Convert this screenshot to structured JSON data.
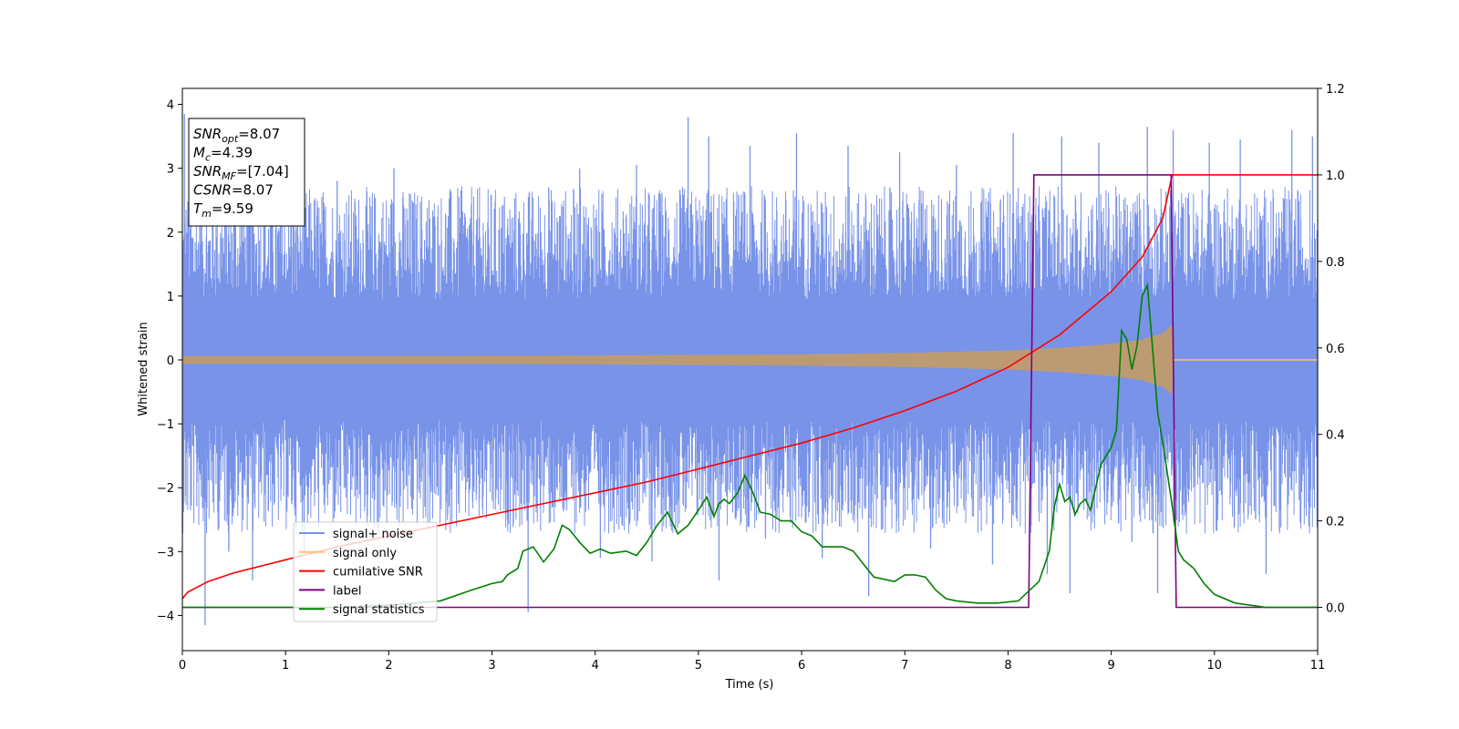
{
  "chart_data": {
    "type": "line",
    "xlabel": "Time (s)",
    "ylabel": "Whitened strain",
    "xlim": [
      0,
      11
    ],
    "ylim_left": [
      -4.55,
      4.25
    ],
    "ylim_right": [
      -0.1,
      1.2
    ],
    "x_ticks": [
      "0",
      "1",
      "2",
      "3",
      "4",
      "5",
      "6",
      "7",
      "8",
      "9",
      "10",
      "11"
    ],
    "y_ticks_left": [
      "−4",
      "−3",
      "−2",
      "−1",
      "0",
      "1",
      "2",
      "3",
      "4"
    ],
    "y_ticks_right": [
      "0.0",
      "0.2",
      "0.4",
      "0.6",
      "0.8",
      "1.0",
      "1.2"
    ],
    "grid": false,
    "legend_position": "lower-left",
    "annotation": {
      "lines": [
        {
          "base": "SNR",
          "sub": "opt",
          "text": "=8.07"
        },
        {
          "base": "M",
          "sub": "c",
          "text": "=4.39"
        },
        {
          "base": "SNR",
          "sub": "MF",
          "text": "=[7.04]"
        },
        {
          "base": "CSNR",
          "sub": "",
          "text": "=8.07"
        },
        {
          "base": "T",
          "sub": "m",
          "text": "=9.59"
        }
      ]
    },
    "series": [
      {
        "name": "signal+ noise",
        "axis": "left",
        "color": "#7893e8",
        "band": {
          "typical_low": -1.7,
          "typical_high": 1.7
        },
        "peaks": [
          [
            0.02,
            3.85
          ],
          [
            0.22,
            -4.15
          ],
          [
            0.45,
            -3.0
          ],
          [
            0.68,
            -3.45
          ],
          [
            0.95,
            2.75
          ],
          [
            1.18,
            -3.0
          ],
          [
            1.5,
            2.8
          ],
          [
            1.9,
            -2.7
          ],
          [
            2.05,
            3.0
          ],
          [
            2.35,
            -2.3
          ],
          [
            2.7,
            2.65
          ],
          [
            3.15,
            -2.5
          ],
          [
            3.35,
            -3.95
          ],
          [
            3.55,
            2.7
          ],
          [
            3.85,
            3.0
          ],
          [
            4.05,
            -3.1
          ],
          [
            4.4,
            3.05
          ],
          [
            4.55,
            -3.15
          ],
          [
            4.9,
            3.8
          ],
          [
            5.1,
            3.5
          ],
          [
            5.2,
            -3.45
          ],
          [
            5.5,
            3.35
          ],
          [
            5.65,
            -2.8
          ],
          [
            5.95,
            3.55
          ],
          [
            6.2,
            -3.1
          ],
          [
            6.45,
            3.35
          ],
          [
            6.65,
            -3.7
          ],
          [
            6.95,
            3.25
          ],
          [
            7.25,
            -2.95
          ],
          [
            7.5,
            3.05
          ],
          [
            7.85,
            -3.2
          ],
          [
            8.05,
            3.55
          ],
          [
            8.38,
            -3.35
          ],
          [
            8.52,
            3.5
          ],
          [
            8.6,
            -3.65
          ],
          [
            8.88,
            3.4
          ],
          [
            9.2,
            -2.85
          ],
          [
            9.35,
            3.65
          ],
          [
            9.45,
            -3.65
          ],
          [
            9.6,
            3.6
          ],
          [
            9.72,
            -2.35
          ],
          [
            9.95,
            3.4
          ],
          [
            10.25,
            3.45
          ],
          [
            10.5,
            -3.35
          ],
          [
            10.75,
            3.6
          ],
          [
            10.95,
            3.5
          ]
        ]
      },
      {
        "name": "signal only",
        "axis": "left",
        "color": "#ffbf7a",
        "envelope": [
          [
            0.0,
            0.06
          ],
          [
            1.0,
            0.06
          ],
          [
            2.0,
            0.06
          ],
          [
            3.0,
            0.065
          ],
          [
            4.0,
            0.07
          ],
          [
            5.0,
            0.08
          ],
          [
            6.0,
            0.09
          ],
          [
            7.0,
            0.11
          ],
          [
            8.0,
            0.15
          ],
          [
            8.5,
            0.19
          ],
          [
            9.0,
            0.25
          ],
          [
            9.3,
            0.32
          ],
          [
            9.5,
            0.42
          ],
          [
            9.59,
            0.55
          ],
          [
            9.6,
            0.0
          ],
          [
            11.0,
            0.0
          ]
        ]
      },
      {
        "name": "cumilative SNR",
        "axis": "right",
        "color": "#ff0000",
        "x": [
          0.0,
          0.05,
          0.25,
          0.5,
          1.0,
          1.5,
          2.0,
          2.5,
          3.0,
          3.5,
          4.0,
          4.5,
          5.0,
          5.5,
          6.0,
          6.5,
          7.0,
          7.5,
          8.0,
          8.5,
          9.0,
          9.3,
          9.5,
          9.59,
          9.6,
          11.0
        ],
        "y": [
          0.02,
          0.035,
          0.06,
          0.08,
          0.11,
          0.14,
          0.165,
          0.19,
          0.215,
          0.24,
          0.265,
          0.29,
          0.32,
          0.35,
          0.38,
          0.415,
          0.455,
          0.5,
          0.555,
          0.63,
          0.73,
          0.81,
          0.9,
          1.0,
          1.0,
          1.0
        ]
      },
      {
        "name": "label",
        "axis": "right",
        "color": "#800080",
        "x": [
          0.0,
          8.2,
          8.25,
          9.58,
          9.63,
          11.0
        ],
        "y": [
          0.0,
          0.0,
          1.0,
          1.0,
          0.0,
          0.0
        ]
      },
      {
        "name": "signal statistics",
        "axis": "right",
        "color": "#008000",
        "x": [
          0.0,
          0.5,
          1.0,
          1.5,
          2.0,
          2.5,
          2.8,
          3.0,
          3.1,
          3.15,
          3.25,
          3.3,
          3.4,
          3.5,
          3.6,
          3.68,
          3.75,
          3.85,
          3.95,
          4.05,
          4.15,
          4.3,
          4.4,
          4.5,
          4.6,
          4.7,
          4.8,
          4.9,
          5.0,
          5.08,
          5.15,
          5.2,
          5.25,
          5.3,
          5.38,
          5.45,
          5.52,
          5.6,
          5.7,
          5.8,
          5.9,
          6.0,
          6.1,
          6.2,
          6.3,
          6.4,
          6.5,
          6.6,
          6.7,
          6.8,
          6.9,
          7.0,
          7.1,
          7.2,
          7.3,
          7.4,
          7.5,
          7.7,
          7.9,
          8.1,
          8.3,
          8.4,
          8.45,
          8.5,
          8.55,
          8.6,
          8.65,
          8.7,
          8.75,
          8.8,
          8.9,
          9.0,
          9.05,
          9.1,
          9.15,
          9.2,
          9.25,
          9.3,
          9.35,
          9.4,
          9.45,
          9.5,
          9.55,
          9.6,
          9.65,
          9.7,
          9.8,
          9.9,
          10.0,
          10.2,
          10.5,
          11.0
        ],
        "y": [
          0.0,
          0.0,
          0.0,
          0.0,
          0.005,
          0.015,
          0.04,
          0.055,
          0.06,
          0.075,
          0.09,
          0.13,
          0.14,
          0.105,
          0.135,
          0.19,
          0.18,
          0.15,
          0.125,
          0.135,
          0.125,
          0.13,
          0.12,
          0.15,
          0.19,
          0.22,
          0.17,
          0.19,
          0.225,
          0.255,
          0.21,
          0.24,
          0.25,
          0.24,
          0.265,
          0.305,
          0.27,
          0.22,
          0.215,
          0.2,
          0.2,
          0.175,
          0.165,
          0.14,
          0.14,
          0.14,
          0.13,
          0.1,
          0.07,
          0.065,
          0.06,
          0.075,
          0.075,
          0.07,
          0.04,
          0.02,
          0.015,
          0.01,
          0.01,
          0.015,
          0.06,
          0.13,
          0.235,
          0.285,
          0.245,
          0.255,
          0.215,
          0.24,
          0.25,
          0.225,
          0.33,
          0.37,
          0.41,
          0.64,
          0.62,
          0.55,
          0.605,
          0.72,
          0.745,
          0.6,
          0.45,
          0.38,
          0.3,
          0.22,
          0.13,
          0.11,
          0.09,
          0.055,
          0.03,
          0.01,
          0.0,
          0.0
        ]
      }
    ]
  }
}
